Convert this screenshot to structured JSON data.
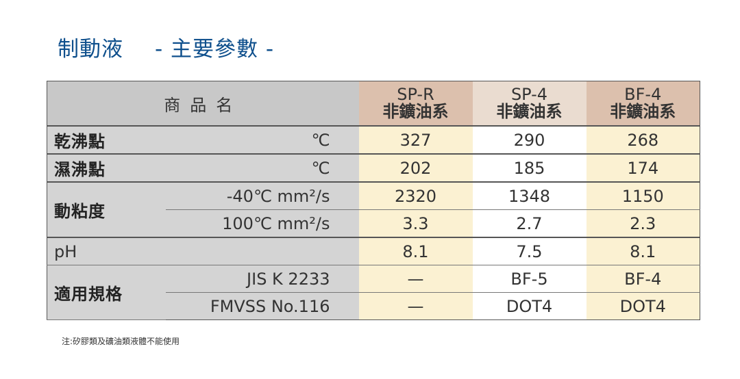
{
  "title": {
    "main": "制動液",
    "sub": "- 主要參數 -"
  },
  "table": {
    "header": {
      "name_label": "商品名",
      "products": [
        {
          "code": "SP-R",
          "type": "非鑛油系"
        },
        {
          "code": "SP-4",
          "type": "非鑛油系"
        },
        {
          "code": "BF-4",
          "type": "非鑛油系"
        }
      ]
    },
    "rows": {
      "dry_boiling": {
        "label": "乾沸點",
        "unit": "℃",
        "values": [
          "327",
          "290",
          "268"
        ]
      },
      "wet_boiling": {
        "label": "濕沸點",
        "unit": "℃",
        "values": [
          "202",
          "185",
          "174"
        ]
      },
      "viscosity": {
        "label": "動粘度",
        "sub": [
          {
            "cond": "-40℃  mm²/s",
            "values": [
              "2320",
              "1348",
              "1150"
            ]
          },
          {
            "cond": "100℃  mm²/s",
            "values": [
              "3.3",
              "2.7",
              "2.3"
            ]
          }
        ]
      },
      "ph": {
        "label": "pH",
        "values": [
          "8.1",
          "7.5",
          "8.1"
        ]
      },
      "standard": {
        "label": "適用規格",
        "sub": [
          {
            "cond": "JIS K 2233",
            "values": [
              "—",
              "BF-5",
              "BF-4"
            ]
          },
          {
            "cond": "FMVSS No.116",
            "values": [
              "—",
              "DOT4",
              "DOT4"
            ]
          }
        ]
      }
    }
  },
  "note": "注:矽膠類及礦油類液體不能使用"
}
